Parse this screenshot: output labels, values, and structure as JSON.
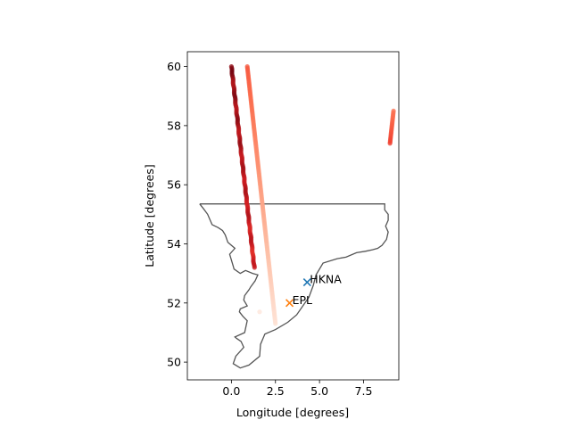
{
  "chart_data": {
    "type": "scatter",
    "xlabel": "Longitude [degrees]",
    "ylabel": "Latitude [degrees]",
    "xlim": [
      -2.5,
      9.5
    ],
    "ylim": [
      49.4,
      60.5
    ],
    "xticks": [
      0.0,
      2.5,
      5.0,
      7.5
    ],
    "xtick_labels": [
      "0.0",
      "2.5",
      "5.0",
      "7.5"
    ],
    "yticks": [
      50,
      52,
      54,
      56,
      58,
      60
    ],
    "ytick_labels": [
      "50",
      "52",
      "54",
      "56",
      "58",
      "60"
    ],
    "grid": false,
    "colormap": "Reds",
    "tracks": [
      {
        "start": [
          0.0,
          60.0
        ],
        "end": [
          1.3,
          53.2
        ],
        "intensity_start": 0.92,
        "intensity_end": 0.72,
        "jitter": 0.05
      },
      {
        "start": [
          0.9,
          60.0
        ],
        "end": [
          2.5,
          51.3
        ],
        "intensity_start": 0.55,
        "intensity_end": 0.12,
        "jitter": 0.0
      },
      {
        "start": [
          9.0,
          57.4
        ],
        "end": [
          9.2,
          58.5
        ],
        "intensity_start": 0.62,
        "intensity_end": 0.48,
        "jitter": 0.0
      }
    ],
    "isolated_points": [
      {
        "lon": 1.6,
        "lat": 51.7,
        "intensity": 0.1
      }
    ],
    "coastline": [
      [
        -1.8,
        55.35
      ],
      [
        8.7,
        55.35
      ],
      [
        8.7,
        55.15
      ],
      [
        8.9,
        55.0
      ],
      [
        8.9,
        54.8
      ],
      [
        8.75,
        54.6
      ],
      [
        8.9,
        54.4
      ],
      [
        8.8,
        54.15
      ],
      [
        8.55,
        53.95
      ],
      [
        8.3,
        53.85
      ],
      [
        8.0,
        53.8
      ],
      [
        7.6,
        53.75
      ],
      [
        7.1,
        53.7
      ],
      [
        6.5,
        53.55
      ],
      [
        6.0,
        53.5
      ],
      [
        5.2,
        53.35
      ],
      [
        4.8,
        52.95
      ],
      [
        4.65,
        52.6
      ],
      [
        4.4,
        52.2
      ],
      [
        3.7,
        51.6
      ],
      [
        3.2,
        51.35
      ],
      [
        2.5,
        51.1
      ],
      [
        1.9,
        50.95
      ],
      [
        1.65,
        50.6
      ],
      [
        1.6,
        50.2
      ],
      [
        1.0,
        49.9
      ],
      [
        0.5,
        49.8
      ],
      [
        0.1,
        49.95
      ],
      [
        0.25,
        50.2
      ],
      [
        0.7,
        50.5
      ],
      [
        0.55,
        50.7
      ],
      [
        0.3,
        50.8
      ],
      [
        0.2,
        50.85
      ],
      [
        0.75,
        51.0
      ],
      [
        0.9,
        51.4
      ],
      [
        0.65,
        51.55
      ],
      [
        0.45,
        51.7
      ],
      [
        0.5,
        51.8
      ],
      [
        0.9,
        51.9
      ],
      [
        0.7,
        52.1
      ],
      [
        0.75,
        52.25
      ],
      [
        1.0,
        52.45
      ],
      [
        1.1,
        52.55
      ],
      [
        1.35,
        52.75
      ],
      [
        1.5,
        52.95
      ],
      [
        1.2,
        53.0
      ],
      [
        0.8,
        53.1
      ],
      [
        0.5,
        53.0
      ],
      [
        0.15,
        53.15
      ],
      [
        0.1,
        53.25
      ],
      [
        -0.1,
        53.65
      ],
      [
        0.2,
        53.85
      ],
      [
        -0.2,
        54.05
      ],
      [
        -0.35,
        54.3
      ],
      [
        -0.5,
        54.45
      ],
      [
        -0.75,
        54.55
      ],
      [
        -1.1,
        54.65
      ],
      [
        -1.35,
        55.0
      ],
      [
        -1.6,
        55.2
      ],
      [
        -1.8,
        55.35
      ]
    ],
    "coastline_color": "#555555",
    "stations": [
      {
        "name": "HKNA",
        "lon": 4.3,
        "lat": 52.7,
        "color": "#1f77b4"
      },
      {
        "name": "EPL",
        "lon": 3.3,
        "lat": 52.0,
        "color": "#ff7f0e"
      }
    ]
  }
}
